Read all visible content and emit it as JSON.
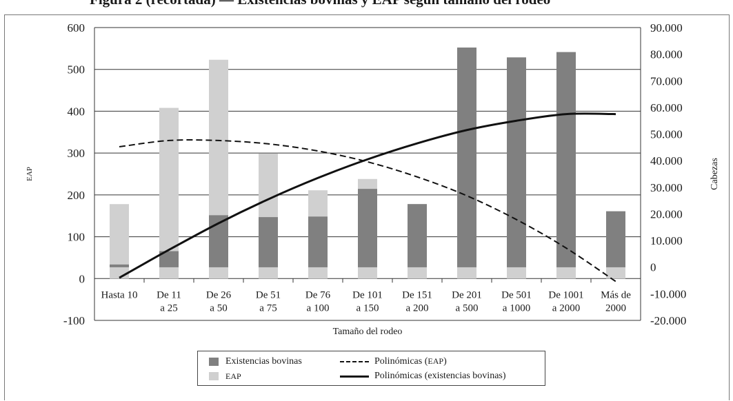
{
  "title": "Figura 2 (recortada) — Existencias bovinas y EAP según tamaño del rodeo",
  "chart_data": {
    "type": "bar",
    "categories": [
      "Hasta 10",
      "De 11\na 25",
      "De 26\na 50",
      "De 51\na 75",
      "De 76\na 100",
      "De 101\na 150",
      "De 151\na 200",
      "De 201\na 500",
      "De 501\na 1000",
      "De 1001\na 2000",
      "Más de\n2000"
    ],
    "series": [
      {
        "name": "Existencias bovinas",
        "axis": "right",
        "values": [
          1000,
          6000,
          19500,
          18800,
          19000,
          29400,
          23700,
          82500,
          78800,
          80800,
          21000
        ]
      },
      {
        "name": "EAP",
        "axis": "left",
        "values": [
          178,
          408,
          523,
          299,
          211,
          238,
          0,
          0,
          0,
          0,
          8
        ]
      },
      {
        "name": "Polinómicas (EAP)",
        "type": "line",
        "style": "dashed",
        "axis": "left",
        "values": [
          315,
          330,
          330,
          322,
          305,
          279,
          243,
          198,
          141,
          73,
          -7
        ]
      },
      {
        "name": "Polinómicas (existencias bovinas)",
        "type": "line",
        "style": "solid",
        "axis": "right",
        "values": [
          -4000,
          6500,
          16500,
          25500,
          33500,
          40500,
          46500,
          51500,
          55000,
          57500,
          57500
        ]
      }
    ],
    "base_band": {
      "left_value": 27,
      "note": "light band at baseline of each bar (zero line of right axis)"
    },
    "xlabel": "Tamaño del rodeo",
    "ylabel": "EAP",
    "ylabel_right": "Cabezas",
    "ylim": [
      -100,
      600
    ],
    "yticks": [
      "600",
      "500",
      "400",
      "300",
      "200",
      "100",
      "0",
      "-100"
    ],
    "ylim_right": [
      -20000,
      90000
    ],
    "yticks_right": [
      "90.000",
      "80.000",
      "70.000",
      "60.000",
      "50.000",
      "40.000",
      "30.000",
      "20.000",
      "10.000",
      "0",
      "-10.000",
      "-20.000"
    ],
    "grid": true,
    "legend_position": "bottom",
    "colors": {
      "existencias": "#808080",
      "eap": "#d0d0d0",
      "lines": "#111111"
    }
  },
  "legend": {
    "existencias_label": "Existencias bovinas",
    "eap_label": "EAP",
    "poly_eap_label_main": "Polinómicas (",
    "poly_eap_label_small": "EAP",
    "poly_eap_label_end": ")",
    "poly_exist_label": "Polinómicas (existencias bovinas)"
  }
}
